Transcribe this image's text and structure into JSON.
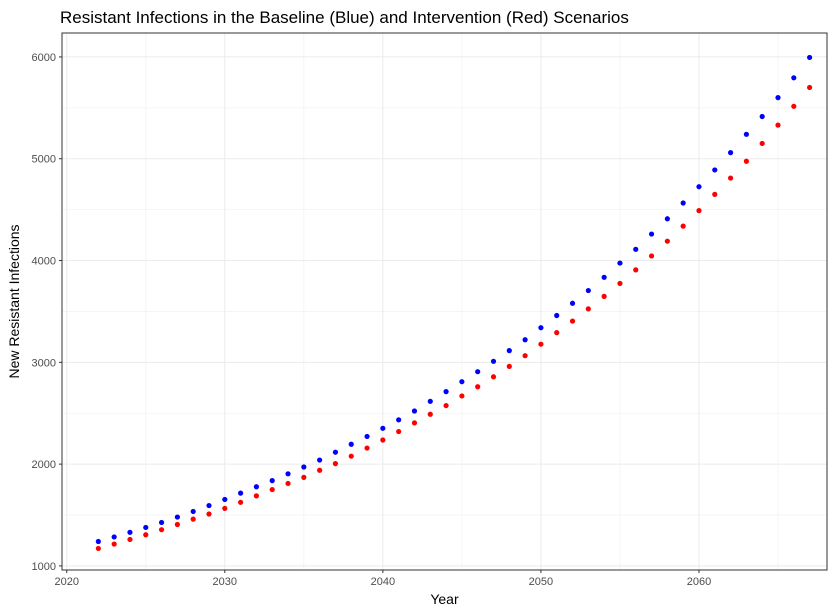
{
  "chart_data": {
    "type": "scatter",
    "title": "Resistant Infections in the Baseline (Blue) and Intervention (Red) Scenarios",
    "xlabel": "Year",
    "ylabel": "New Resistant Infections",
    "xlim": [
      2019.7,
      2068.1
    ],
    "ylim": [
      960,
      6235
    ],
    "x_ticks": [
      2020,
      2030,
      2040,
      2050,
      2060
    ],
    "y_ticks": [
      1000,
      2000,
      3000,
      4000,
      5000,
      6000
    ],
    "x_tick_labels": [
      "2020",
      "2030",
      "2040",
      "2050",
      "2060"
    ],
    "y_tick_labels": [
      "1000",
      "2000",
      "3000",
      "4000",
      "5000",
      "6000"
    ],
    "grid": true,
    "legend": "none",
    "x": [
      2022,
      2023,
      2024,
      2025,
      2026,
      2027,
      2028,
      2029,
      2030,
      2031,
      2032,
      2033,
      2034,
      2035,
      2036,
      2037,
      2038,
      2039,
      2040,
      2041,
      2042,
      2043,
      2044,
      2045,
      2046,
      2047,
      2048,
      2049,
      2050,
      2051,
      2052,
      2053,
      2054,
      2055,
      2056,
      2057,
      2058,
      2059,
      2060,
      2061,
      2062,
      2063,
      2064,
      2065,
      2066,
      2067
    ],
    "series": [
      {
        "color": "#0000ff",
        "values": [
          1240,
          1285,
          1330,
          1378,
          1427,
          1480,
          1535,
          1593,
          1653,
          1715,
          1778,
          1838,
          1905,
          1972,
          2040,
          2117,
          2195,
          2272,
          2352,
          2435,
          2522,
          2617,
          2712,
          2810,
          2908,
          3010,
          3115,
          3222,
          3340,
          3460,
          3580,
          3705,
          3835,
          3975,
          4110,
          4260,
          4410,
          4565,
          4725,
          4890,
          5060,
          5240,
          5415,
          5600,
          5795,
          5995
        ]
      },
      {
        "color": "#ff0000",
        "values": [
          1172,
          1215,
          1260,
          1306,
          1356,
          1407,
          1460,
          1510,
          1565,
          1625,
          1688,
          1750,
          1810,
          1870,
          1940,
          2005,
          2078,
          2158,
          2237,
          2320,
          2405,
          2490,
          2575,
          2670,
          2760,
          2858,
          2960,
          3065,
          3178,
          3292,
          3405,
          3525,
          3648,
          3775,
          3908,
          4045,
          4190,
          4338,
          4490,
          4650,
          4810,
          4975,
          5150,
          5330,
          5515,
          5700
        ]
      }
    ]
  }
}
